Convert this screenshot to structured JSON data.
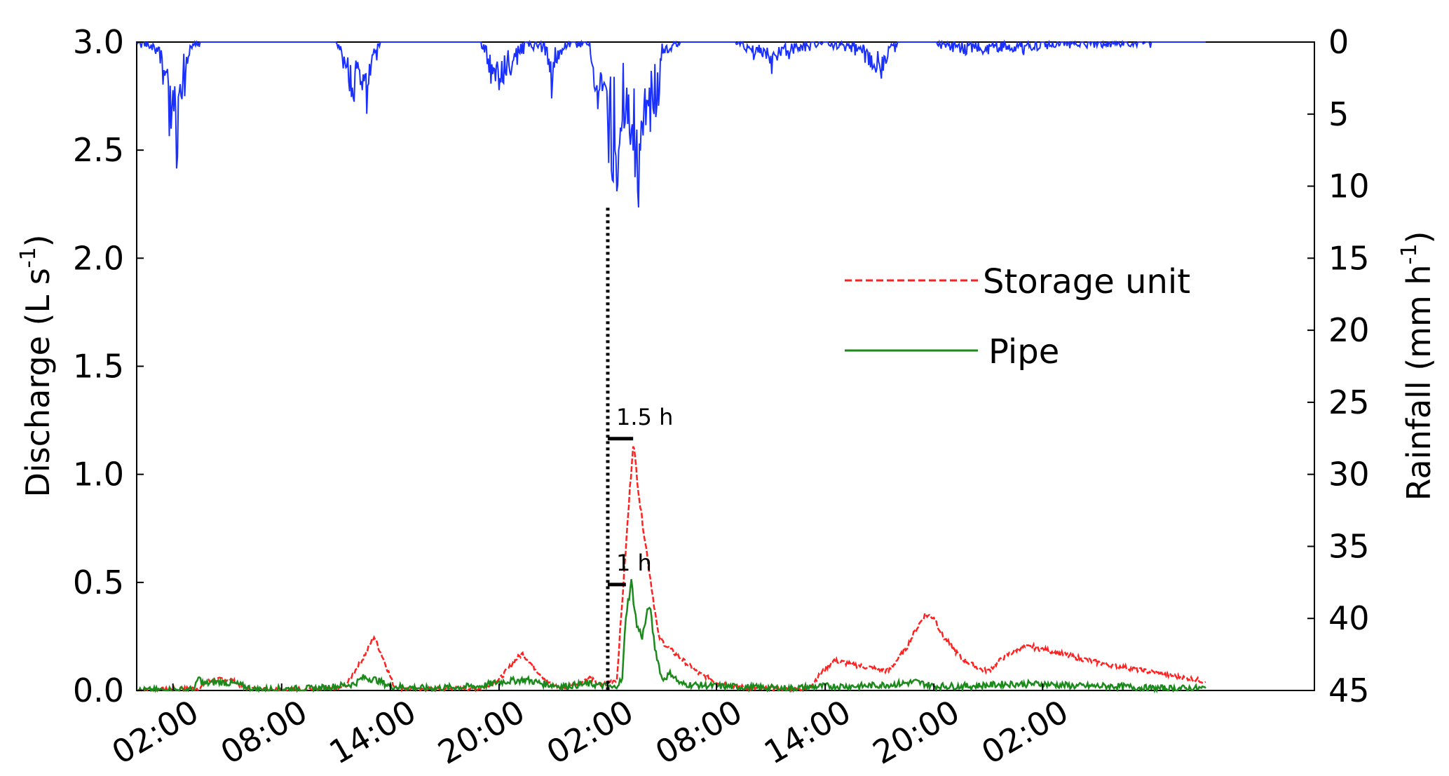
{
  "chart_data": {
    "type": "line",
    "y_left": {
      "label": "Discharge (L s",
      "label_sup": "-1",
      "label_end": ")",
      "range": [
        0,
        3.0
      ],
      "ticks": [
        "0.0",
        "0.5",
        "1.0",
        "1.5",
        "2.0",
        "2.5",
        "3.0"
      ]
    },
    "y_right": {
      "label": "Rainfall (mm h",
      "label_sup": "-1",
      "label_end": ")",
      "range": [
        0,
        45
      ],
      "inverted": true,
      "ticks": [
        "0",
        "5",
        "10",
        "15",
        "20",
        "25",
        "30",
        "35",
        "40",
        "45"
      ]
    },
    "x": {
      "unit": "hours",
      "range": [
        0,
        65
      ],
      "ticks": [
        {
          "h": 2,
          "label": "02:00"
        },
        {
          "h": 8,
          "label": "08:00"
        },
        {
          "h": 14,
          "label": "14:00"
        },
        {
          "h": 20,
          "label": "20:00"
        },
        {
          "h": 26,
          "label": "02:00"
        },
        {
          "h": 32,
          "label": "08:00"
        },
        {
          "h": 38,
          "label": "14:00"
        },
        {
          "h": 44,
          "label": "20:00"
        },
        {
          "h": 50,
          "label": "02:00"
        }
      ]
    },
    "series": [
      {
        "name": "Storage unit",
        "color": "#ff2020",
        "style": "dashed",
        "points": [
          [
            0,
            0
          ],
          [
            3.5,
            0.01
          ],
          [
            3.8,
            0.04
          ],
          [
            4.5,
            0.05
          ],
          [
            5.2,
            0.05
          ],
          [
            5.8,
            0.02
          ],
          [
            6.5,
            0.005
          ],
          [
            8,
            0.005
          ],
          [
            11,
            0.005
          ],
          [
            11.5,
            0.02
          ],
          [
            12.5,
            0.15
          ],
          [
            13.1,
            0.25
          ],
          [
            13.6,
            0.15
          ],
          [
            14.2,
            0.02
          ],
          [
            15,
            0.005
          ],
          [
            19,
            0.01
          ],
          [
            20,
            0.05
          ],
          [
            21,
            0.15
          ],
          [
            21.3,
            0.17
          ],
          [
            22,
            0.1
          ],
          [
            22.8,
            0.03
          ],
          [
            23.5,
            0.01
          ],
          [
            24.5,
            0.04
          ],
          [
            25,
            0.06
          ],
          [
            25.6,
            0.02
          ],
          [
            26.0,
            0.04
          ],
          [
            26.5,
            0.05
          ],
          [
            27.4,
            1.15
          ],
          [
            27.8,
            0.85
          ],
          [
            28.3,
            0.55
          ],
          [
            28.8,
            0.25
          ],
          [
            29.3,
            0.2
          ],
          [
            30,
            0.15
          ],
          [
            31,
            0.08
          ],
          [
            32,
            0.04
          ],
          [
            33,
            0.02
          ],
          [
            34,
            0.01
          ],
          [
            36,
            0.005
          ],
          [
            37,
            0.005
          ],
          [
            38,
            0.1
          ],
          [
            38.5,
            0.14
          ],
          [
            39.5,
            0.12
          ],
          [
            41.5,
            0.09
          ],
          [
            42.5,
            0.2
          ],
          [
            43,
            0.28
          ],
          [
            43.5,
            0.35
          ],
          [
            44,
            0.34
          ],
          [
            44.5,
            0.25
          ],
          [
            45.5,
            0.15
          ],
          [
            46.5,
            0.1
          ],
          [
            47,
            0.09
          ],
          [
            47.8,
            0.15
          ],
          [
            48.8,
            0.2
          ],
          [
            49.5,
            0.2
          ],
          [
            51,
            0.17
          ],
          [
            53,
            0.13
          ],
          [
            55,
            0.1
          ],
          [
            57,
            0.07
          ],
          [
            58.5,
            0.05
          ],
          [
            59,
            0.04
          ]
        ]
      },
      {
        "name": "Pipe",
        "color": "#1a8a1a",
        "style": "solid",
        "points": [
          [
            0,
            0
          ],
          [
            3.2,
            0.005
          ],
          [
            3.4,
            0.06
          ],
          [
            3.7,
            0.03
          ],
          [
            4.5,
            0.04
          ],
          [
            5.5,
            0.03
          ],
          [
            6.5,
            0.005
          ],
          [
            10,
            0.01
          ],
          [
            12,
            0.03
          ],
          [
            12.5,
            0.06
          ],
          [
            13.2,
            0.05
          ],
          [
            14,
            0.02
          ],
          [
            16,
            0.01
          ],
          [
            19,
            0.02
          ],
          [
            20,
            0.04
          ],
          [
            21.5,
            0.05
          ],
          [
            22.5,
            0.03
          ],
          [
            23.5,
            0.02
          ],
          [
            25,
            0.03
          ],
          [
            26,
            0.02
          ],
          [
            26.3,
            0.01
          ],
          [
            26.8,
            0.05
          ],
          [
            27.0,
            0.35
          ],
          [
            27.3,
            0.5
          ],
          [
            27.6,
            0.3
          ],
          [
            27.9,
            0.25
          ],
          [
            28.3,
            0.4
          ],
          [
            28.6,
            0.2
          ],
          [
            29,
            0.05
          ],
          [
            29.5,
            0.08
          ],
          [
            30,
            0.03
          ],
          [
            32,
            0.02
          ],
          [
            36,
            0.01
          ],
          [
            38,
            0.02
          ],
          [
            40,
            0.02
          ],
          [
            42,
            0.03
          ],
          [
            43,
            0.04
          ],
          [
            44,
            0.02
          ],
          [
            46,
            0.02
          ],
          [
            48,
            0.03
          ],
          [
            50,
            0.03
          ],
          [
            52,
            0.02
          ],
          [
            54,
            0.02
          ],
          [
            56,
            0.01
          ],
          [
            59,
            0.01
          ]
        ]
      },
      {
        "name": "Rainfall",
        "color": "#1a30ff",
        "style": "solid",
        "axis": "right",
        "points": [
          [
            0,
            0
          ],
          [
            1,
            0.3
          ],
          [
            1.5,
            1.5
          ],
          [
            1.8,
            3
          ],
          [
            2,
            4.5
          ],
          [
            2.2,
            5.5
          ],
          [
            2.4,
            4
          ],
          [
            2.6,
            2
          ],
          [
            3,
            0.5
          ],
          [
            3.5,
            0
          ],
          [
            11,
            0
          ],
          [
            11.5,
            1.5
          ],
          [
            12.0,
            3.5
          ],
          [
            12.3,
            2
          ],
          [
            12.7,
            3
          ],
          [
            13,
            1
          ],
          [
            13.5,
            0
          ],
          [
            19,
            0
          ],
          [
            19.5,
            1.5
          ],
          [
            20.2,
            2.5
          ],
          [
            20.8,
            1
          ],
          [
            21.5,
            0
          ],
          [
            22.5,
            0.5
          ],
          [
            23,
            2
          ],
          [
            23.5,
            0.3
          ],
          [
            25,
            0
          ],
          [
            25.2,
            2
          ],
          [
            25.5,
            4
          ],
          [
            25.8,
            3
          ],
          [
            26.2,
            7
          ],
          [
            26.5,
            11.5
          ],
          [
            26.7,
            7
          ],
          [
            27.0,
            4
          ],
          [
            27.3,
            5.5
          ],
          [
            27.6,
            8.5
          ],
          [
            27.9,
            6
          ],
          [
            28.3,
            3
          ],
          [
            28.6,
            4.5
          ],
          [
            29,
            0.5
          ],
          [
            30,
            0
          ],
          [
            33,
            0
          ],
          [
            34,
            0.5
          ],
          [
            35,
            1
          ],
          [
            36,
            0.5
          ],
          [
            37,
            0.3
          ],
          [
            38,
            0
          ],
          [
            40,
            0.5
          ],
          [
            40.5,
            1.2
          ],
          [
            41,
            2
          ],
          [
            41.5,
            0.8
          ],
          [
            42,
            0
          ],
          [
            44,
            0
          ],
          [
            45,
            0.4
          ],
          [
            46,
            0.4
          ],
          [
            48,
            0.3
          ],
          [
            50,
            0.2
          ],
          [
            52,
            0.1
          ],
          [
            54,
            0.05
          ],
          [
            56,
            0
          ],
          [
            59,
            0
          ]
        ]
      }
    ],
    "annotations": [
      {
        "label": "1.5 h",
        "from": [
          26.0,
          1.165
        ],
        "to": [
          27.4,
          1.165
        ]
      },
      {
        "label": "1 h",
        "from": [
          26.0,
          0.49
        ],
        "to": [
          27.0,
          0.49
        ]
      }
    ],
    "event_marker_h": 26.0,
    "legend": {
      "position": "center-right",
      "entries": [
        "Storage unit",
        "Pipe"
      ]
    }
  }
}
